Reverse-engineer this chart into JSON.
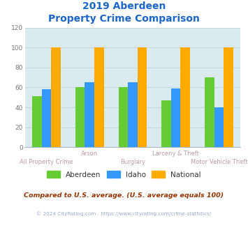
{
  "title_line1": "2019 Aberdeen",
  "title_line2": "Property Crime Comparison",
  "categories": [
    "All Property Crime",
    "Arson",
    "Burglary",
    "Larceny & Theft",
    "Motor Vehicle Theft"
  ],
  "series": {
    "Aberdeen": [
      51,
      60,
      60,
      47,
      70
    ],
    "Idaho": [
      58,
      65,
      65,
      59,
      40
    ],
    "National": [
      100,
      100,
      100,
      100,
      100
    ]
  },
  "colors": {
    "Aberdeen": "#66cc33",
    "Idaho": "#3399ff",
    "National": "#ffaa00"
  },
  "ylim": [
    0,
    120
  ],
  "yticks": [
    0,
    20,
    40,
    60,
    80,
    100,
    120
  ],
  "title_color": "#1a66cc",
  "grid_color": "#c5d8dc",
  "bg_color": "#daeaee",
  "legend_labels": [
    "Aberdeen",
    "Idaho",
    "National"
  ],
  "footnote1": "Compared to U.S. average. (U.S. average equals 100)",
  "footnote2": "© 2024 CityRating.com - https://www.cityrating.com/crime-statistics/",
  "footnote1_color": "#993300",
  "footnote2_color": "#99aacc",
  "bar_width": 0.22,
  "xlabel_color_top": "#bb99aa",
  "xlabel_color_bot": "#bb99aa",
  "row1_labels": [
    [
      "Arson",
      1
    ],
    [
      "Larceny & Theft",
      3
    ]
  ],
  "row2_labels": [
    [
      "All Property Crime",
      0
    ],
    [
      "Burglary",
      2
    ],
    [
      "Motor Vehicle Theft",
      4
    ]
  ]
}
